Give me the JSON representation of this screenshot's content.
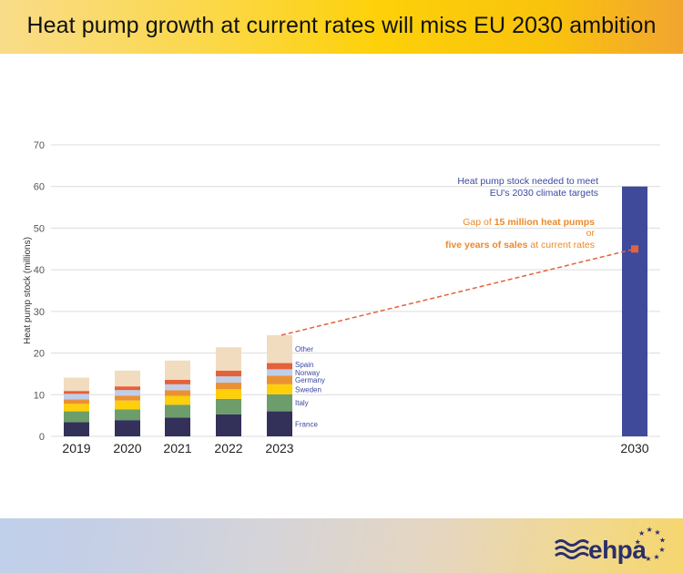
{
  "header": {
    "title": "Heat pump growth at current rates will miss EU 2030 ambition"
  },
  "footer": {
    "logo_text": "ehpa"
  },
  "chart_data": {
    "type": "bar",
    "stacked": true,
    "title": "Heat pump growth at current rates will miss EU 2030 ambition",
    "xlabel": "",
    "ylabel": "Heat pump stock (millions)",
    "ylim": [
      0,
      70
    ],
    "yticks": [
      0,
      10,
      20,
      30,
      40,
      50,
      60,
      70
    ],
    "grid": true,
    "categories": [
      "2019",
      "2020",
      "2021",
      "2022",
      "2023"
    ],
    "series": [
      {
        "name": "France",
        "color": "#33305A",
        "values": [
          3.4,
          3.9,
          4.5,
          5.3,
          6.0
        ]
      },
      {
        "name": "Italy",
        "color": "#6D9D6A",
        "values": [
          2.6,
          2.6,
          3.1,
          3.7,
          4.1
        ]
      },
      {
        "name": "Sweden",
        "color": "#FDD00A",
        "values": [
          1.8,
          2.1,
          2.1,
          2.3,
          2.4
        ]
      },
      {
        "name": "Germany",
        "color": "#EB9135",
        "values": [
          1.1,
          1.2,
          1.4,
          1.6,
          2.1
        ]
      },
      {
        "name": "Norway",
        "color": "#BFCFEA",
        "values": [
          1.3,
          1.3,
          1.4,
          1.5,
          1.5
        ]
      },
      {
        "name": "Spain",
        "color": "#E4623A",
        "values": [
          0.7,
          0.9,
          1.1,
          1.4,
          1.5
        ]
      },
      {
        "name": "Other",
        "color": "#F2DCC0",
        "values": [
          3.2,
          3.8,
          4.6,
          5.6,
          6.7
        ]
      }
    ],
    "segment_labels_on": "2023",
    "target": {
      "category": "2030",
      "value": 60,
      "color": "#3F4A9B"
    },
    "projection": {
      "from_category": "2023",
      "from_value": 24.3,
      "to_category": "2030",
      "to_value": 45,
      "color": "#E4623A",
      "style": "dashed"
    },
    "annotations": {
      "target_line1": "Heat pump stock needed to meet",
      "target_line2": "EU's 2030 climate targets",
      "gap_prefix": "Gap of ",
      "gap_bold": "15 million heat pumps",
      "gap_or": "or",
      "years_bold": "five years of sales",
      "years_suffix": " at current rates"
    }
  }
}
